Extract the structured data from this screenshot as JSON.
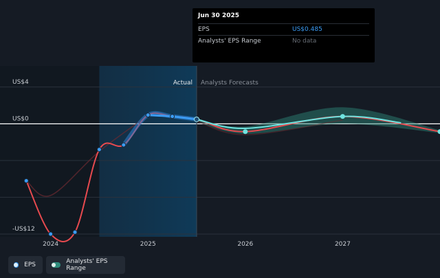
{
  "tooltip": {
    "date": "Jun 30 2025",
    "rows": [
      {
        "label": "EPS",
        "value": "US$0.485",
        "color": "#3b9cf5"
      },
      {
        "label": "Analysts' EPS Range",
        "value": "No data",
        "color": "#666c74"
      }
    ]
  },
  "legend": [
    {
      "label": "EPS",
      "color": "#3b9cf5"
    },
    {
      "label": "Analysts' EPS Range",
      "color": "#2e8c7c"
    }
  ],
  "chart_data": {
    "type": "line",
    "y_tick_labels": [
      {
        "value": 4,
        "label": "US$4"
      },
      {
        "value": 0,
        "label": "US$0"
      },
      {
        "value": -12,
        "label": "-US$12"
      }
    ],
    "x_tick_labels": [
      {
        "value": 2024.0,
        "label": "2024"
      },
      {
        "value": 2025.0,
        "label": "2025"
      },
      {
        "value": 2026.0,
        "label": "2026"
      },
      {
        "value": 2027.0,
        "label": "2027"
      }
    ],
    "xlim": [
      2023.48,
      2028.0
    ],
    "ylim": [
      -12.3,
      6.3
    ],
    "actual_label": "Actual",
    "forecast_label": "Analysts Forecasts",
    "divider_x": 2025.5,
    "highlight_start_x": 2024.5,
    "series": [
      {
        "name": "EPS",
        "color": "#e84a4f",
        "points": [
          {
            "x": 2023.75,
            "y": -6.2
          },
          {
            "x": 2024.0,
            "y": -12.0
          },
          {
            "x": 2024.25,
            "y": -11.8
          },
          {
            "x": 2024.5,
            "y": -2.8
          },
          {
            "x": 2024.75,
            "y": -2.3
          },
          {
            "x": 2025.0,
            "y": 0.95
          },
          {
            "x": 2025.25,
            "y": 0.8
          },
          {
            "x": 2025.5,
            "y": 0.485
          },
          {
            "x": 2026.0,
            "y": -0.85
          },
          {
            "x": 2027.0,
            "y": 0.8
          },
          {
            "x": 2028.0,
            "y": -0.85
          }
        ]
      },
      {
        "name": "Analysts' EPS Range",
        "color": "#2e8c7c",
        "low": [
          {
            "x": 2025.5,
            "y": 0.3
          },
          {
            "x": 2026.0,
            "y": -1.1
          },
          {
            "x": 2027.0,
            "y": 0.0
          },
          {
            "x": 2028.0,
            "y": -1.0
          }
        ],
        "high": [
          {
            "x": 2025.5,
            "y": 0.6
          },
          {
            "x": 2026.0,
            "y": -0.3
          },
          {
            "x": 2027.0,
            "y": 1.8
          },
          {
            "x": 2028.0,
            "y": -0.7
          }
        ]
      }
    ]
  }
}
